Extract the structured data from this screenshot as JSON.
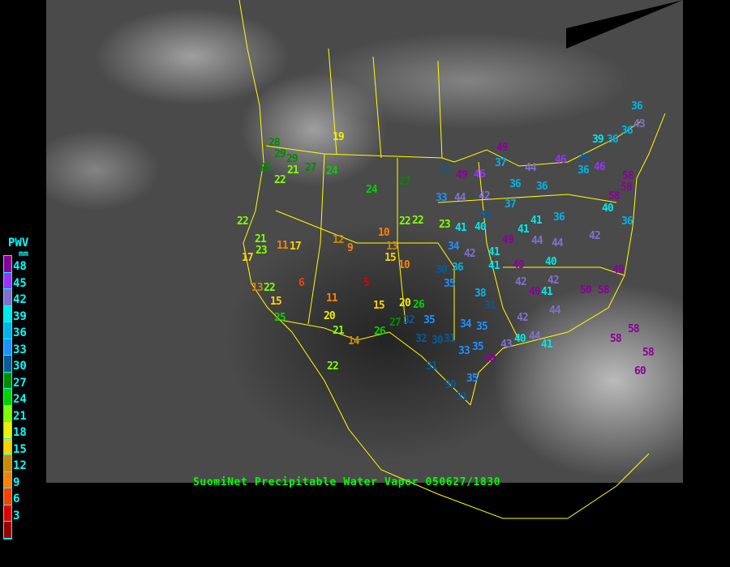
{
  "title": "SuomiNet Precipitable Water Vapor 050627/1830",
  "legend": {
    "title": "PWV",
    "unit": "mm",
    "labels": [
      "48",
      "45",
      "42",
      "39",
      "36",
      "33",
      "30",
      "27",
      "24",
      "21",
      "18",
      "15",
      "12",
      "9",
      "6",
      "3"
    ],
    "colors": [
      "#8B0099",
      "#9933FF",
      "#8070D0",
      "#00E8E8",
      "#00B4E6",
      "#1E90FF",
      "#0A5A96",
      "#008C00",
      "#00D200",
      "#80FF00",
      "#F0F000",
      "#FFD200",
      "#CC8800",
      "#FF8000",
      "#FF4000",
      "#DD0000",
      "#990000"
    ]
  },
  "boundary_color": "#FFFF00",
  "stations": [
    28,
    29,
    29,
    29,
    21,
    22,
    27,
    24,
    19,
    22,
    21,
    23,
    11,
    17,
    17,
    12,
    9,
    10,
    13,
    15,
    10,
    6,
    5,
    11,
    13,
    22,
    15,
    25,
    20,
    21,
    14,
    15,
    20,
    26,
    27,
    26,
    22,
    24,
    27,
    22,
    22,
    23,
    30,
    40,
    41,
    34,
    42,
    41,
    41,
    49,
    49,
    41,
    44,
    44,
    42,
    36,
    41,
    37,
    42,
    33,
    44,
    31,
    49,
    46,
    37,
    49,
    44,
    36,
    36,
    46,
    36,
    46,
    30,
    39,
    36,
    36,
    43,
    36,
    58,
    58,
    58,
    40,
    36,
    49,
    50,
    58,
    40,
    42,
    41,
    49,
    42,
    38,
    31,
    30,
    36,
    35,
    35,
    32,
    32,
    30,
    31,
    34,
    35,
    33,
    35,
    43,
    40,
    44,
    41,
    48,
    42,
    44,
    58,
    58,
    58,
    60,
    31,
    30,
    35,
    31
  ]
}
